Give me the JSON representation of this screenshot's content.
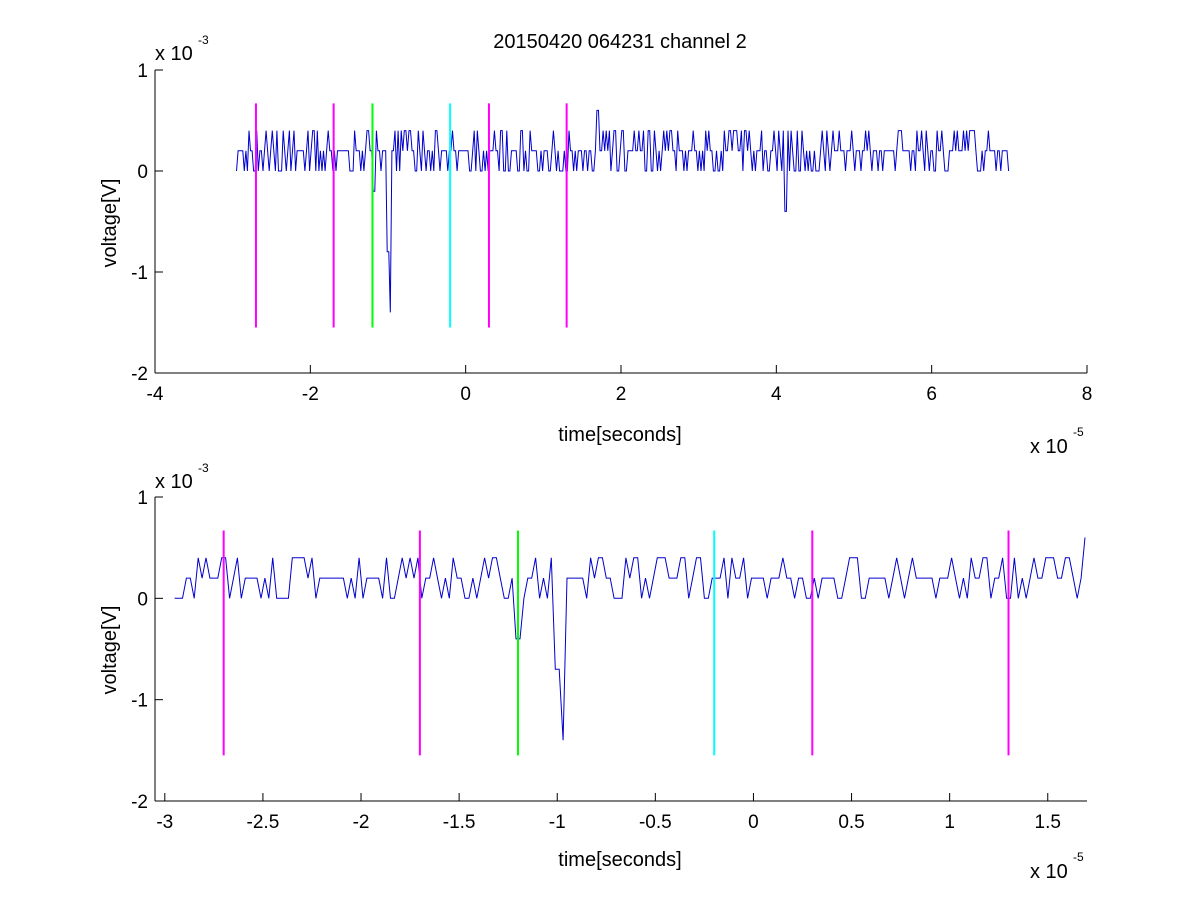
{
  "figure": {
    "title": "20150420 064231 channel 2"
  },
  "colors": {
    "background": "#ffffff",
    "axes": "#000000",
    "signal": "#0000cc",
    "marker_magenta": "#ff00ff",
    "marker_green": "#00ff00",
    "marker_cyan": "#00ffff"
  },
  "chart_data": [
    {
      "type": "line",
      "title": "20150420 064231 channel 2",
      "xlabel": "time[seconds]",
      "ylabel": "voltage[V]",
      "x_multiplier": "x 10",
      "x_exponent": "-5",
      "y_multiplier": "x 10",
      "y_exponent": "-3",
      "xlim": [
        -4,
        8
      ],
      "ylim": [
        -2,
        1
      ],
      "xticks": [
        "-4",
        "-2",
        "0",
        "2",
        "4",
        "6",
        "8"
      ],
      "xtick_values": [
        -4,
        -2,
        0,
        2,
        4,
        6,
        8
      ],
      "yticks": [
        "-2",
        "-1",
        "0",
        "1"
      ],
      "ytick_values": [
        -2,
        -1,
        0,
        1
      ],
      "grid": false,
      "series": [
        {
          "color": "#0000cc",
          "x_start": -2.95,
          "x_end": 7.0,
          "x_step": 0.02,
          "baseline": 0.2,
          "levels": [
            0.0,
            0.2,
            0.4
          ],
          "dips": [
            {
              "x": -1.18,
              "y": -0.2
            },
            {
              "x": -1.0,
              "y": -0.8
            },
            {
              "x": -0.97,
              "y": -1.4
            },
            {
              "x": 1.7,
              "y": 0.6
            },
            {
              "x": 4.12,
              "y": -0.4
            }
          ]
        }
      ],
      "markers": [
        {
          "x": -2.7,
          "y_top": 0.67,
          "y_bottom": -1.55,
          "color": "#ff00ff"
        },
        {
          "x": -1.7,
          "y_top": 0.67,
          "y_bottom": -1.55,
          "color": "#ff00ff"
        },
        {
          "x": -1.2,
          "y_top": 0.67,
          "y_bottom": -1.55,
          "color": "#00ff00"
        },
        {
          "x": -0.2,
          "y_top": 0.67,
          "y_bottom": -1.55,
          "color": "#00ffff"
        },
        {
          "x": 0.3,
          "y_top": 0.67,
          "y_bottom": -1.55,
          "color": "#ff00ff"
        },
        {
          "x": 1.3,
          "y_top": 0.67,
          "y_bottom": -1.55,
          "color": "#ff00ff"
        }
      ]
    },
    {
      "type": "line",
      "title": "",
      "xlabel": "time[seconds]",
      "ylabel": "voltage[V]",
      "x_multiplier": "x 10",
      "x_exponent": "-5",
      "y_multiplier": "x 10",
      "y_exponent": "-3",
      "xlim": [
        -3.05,
        1.7
      ],
      "ylim": [
        -2,
        1
      ],
      "xticks": [
        "-3",
        "-2.5",
        "-2",
        "-1.5",
        "-1",
        "-0.5",
        "0",
        "0.5",
        "1",
        "1.5"
      ],
      "xtick_values": [
        -3,
        -2.5,
        -2,
        -1.5,
        -1,
        -0.5,
        0,
        0.5,
        1,
        1.5
      ],
      "yticks": [
        "-2",
        "-1",
        "0",
        "1"
      ],
      "ytick_values": [
        -2,
        -1,
        0,
        1
      ],
      "grid": false,
      "series": [
        {
          "color": "#0000cc",
          "x_start": -2.95,
          "x_end": 1.7,
          "x_step": 0.02,
          "baseline": 0.2,
          "levels": [
            0.0,
            0.2,
            0.4
          ],
          "dips": [
            {
              "x": -1.2,
              "y": -0.4
            },
            {
              "x": -1.0,
              "y": -0.7
            },
            {
              "x": -0.97,
              "y": -1.4
            },
            {
              "x": 1.7,
              "y": 0.6
            }
          ]
        }
      ],
      "markers": [
        {
          "x": -2.7,
          "y_top": 0.67,
          "y_bottom": -1.55,
          "color": "#ff00ff"
        },
        {
          "x": -1.7,
          "y_top": 0.67,
          "y_bottom": -1.55,
          "color": "#ff00ff"
        },
        {
          "x": -1.2,
          "y_top": 0.67,
          "y_bottom": -1.55,
          "color": "#00ff00"
        },
        {
          "x": -0.2,
          "y_top": 0.67,
          "y_bottom": -1.55,
          "color": "#00ffff"
        },
        {
          "x": 0.3,
          "y_top": 0.67,
          "y_bottom": -1.55,
          "color": "#ff00ff"
        },
        {
          "x": 1.3,
          "y_top": 0.67,
          "y_bottom": -1.55,
          "color": "#ff00ff"
        }
      ]
    }
  ]
}
